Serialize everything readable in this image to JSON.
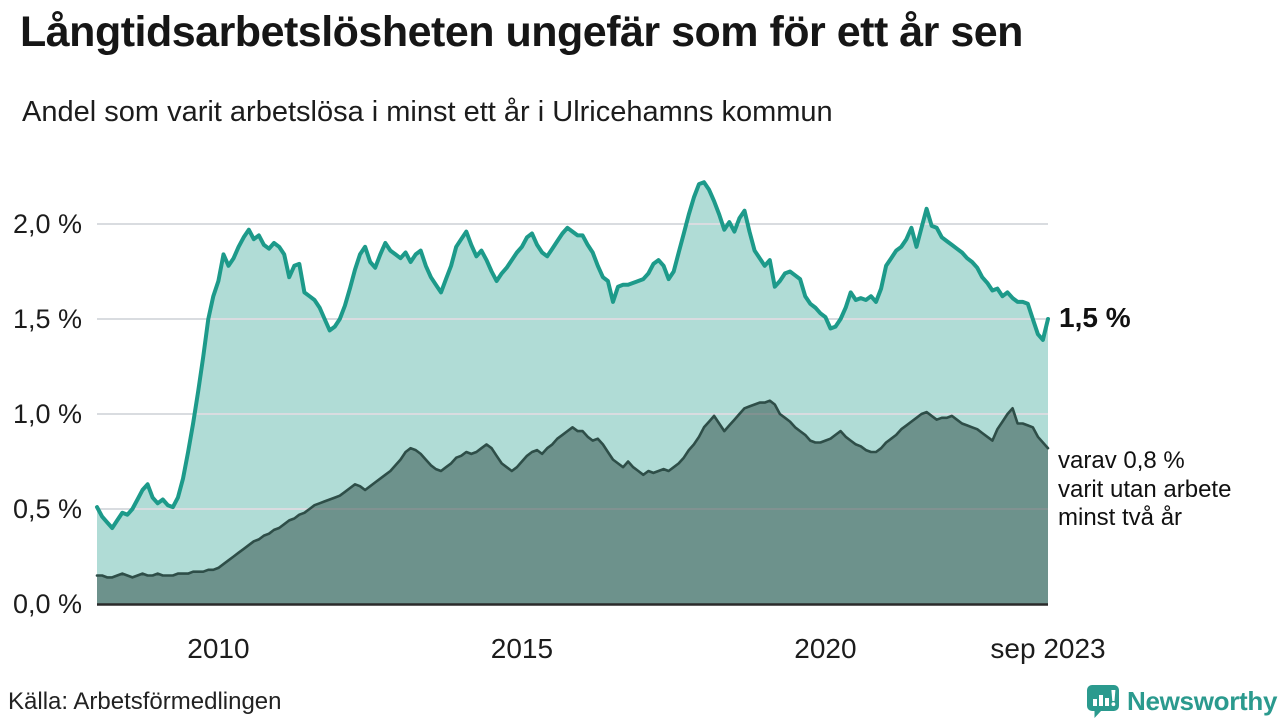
{
  "header": {
    "title": "Långtidsarbetslösheten ungefär som för ett år sen",
    "subtitle": "Andel som varit arbetslösa i minst ett år i Ulricehamns kommun"
  },
  "colors": {
    "primary_line": "#1d9a8a",
    "primary_fill": "rgba(29,154,138,0.35)",
    "secondary_line": "#2e4e48",
    "secondary_fill": "rgba(47,79,73,0.52)",
    "gridline": "#d9dce0",
    "axis": "#2a2a2a",
    "brand_teal": "#2b9a8e"
  },
  "chart_data": {
    "type": "area",
    "title": "Långtidsarbetslösheten ungefär som för ett år sen",
    "subtitle": "Andel som varit arbetslösa i minst ett år i Ulricehamns kommun",
    "unit": "%",
    "frequency": "monthly",
    "x_start": "jan 2008",
    "x_end": "sep 2023",
    "ylim": [
      0,
      2.35
    ],
    "grid": true,
    "legend_position": "none",
    "y_ticks": [
      {
        "label": "2,0 %",
        "value": 2.0
      },
      {
        "label": "1,5 %",
        "value": 1.5
      },
      {
        "label": "1,0 %",
        "value": 1.0
      },
      {
        "label": "0,5 %",
        "value": 0.5
      },
      {
        "label": "0,0 %",
        "value": 0.0
      }
    ],
    "x_ticks": [
      {
        "label": "2010",
        "month_index": 24
      },
      {
        "label": "2015",
        "month_index": 84
      },
      {
        "label": "2020",
        "month_index": 144
      },
      {
        "label": "sep 2023",
        "month_index": 188
      }
    ],
    "series": [
      {
        "name": "Andel arbetslösa minst ett år",
        "current_value": "1,5 %",
        "values": [
          0.51,
          0.46,
          0.43,
          0.4,
          0.44,
          0.48,
          0.47,
          0.5,
          0.55,
          0.6,
          0.63,
          0.56,
          0.53,
          0.55,
          0.52,
          0.51,
          0.56,
          0.66,
          0.8,
          0.95,
          1.12,
          1.3,
          1.5,
          1.62,
          1.7,
          1.84,
          1.78,
          1.82,
          1.88,
          1.93,
          1.97,
          1.92,
          1.94,
          1.89,
          1.87,
          1.9,
          1.88,
          1.84,
          1.72,
          1.78,
          1.79,
          1.64,
          1.62,
          1.6,
          1.56,
          1.5,
          1.44,
          1.46,
          1.5,
          1.57,
          1.66,
          1.76,
          1.84,
          1.88,
          1.8,
          1.77,
          1.84,
          1.9,
          1.86,
          1.84,
          1.82,
          1.85,
          1.8,
          1.84,
          1.86,
          1.78,
          1.72,
          1.68,
          1.64,
          1.71,
          1.78,
          1.88,
          1.92,
          1.96,
          1.89,
          1.83,
          1.86,
          1.81,
          1.75,
          1.7,
          1.74,
          1.77,
          1.81,
          1.85,
          1.88,
          1.93,
          1.95,
          1.89,
          1.85,
          1.83,
          1.87,
          1.91,
          1.95,
          1.98,
          1.96,
          1.94,
          1.94,
          1.89,
          1.85,
          1.78,
          1.72,
          1.7,
          1.59,
          1.67,
          1.68,
          1.68,
          1.69,
          1.7,
          1.71,
          1.74,
          1.79,
          1.81,
          1.78,
          1.71,
          1.75,
          1.85,
          1.95,
          2.05,
          2.14,
          2.21,
          2.22,
          2.18,
          2.12,
          2.05,
          1.97,
          2.01,
          1.96,
          2.03,
          2.07,
          1.96,
          1.86,
          1.82,
          1.78,
          1.81,
          1.67,
          1.7,
          1.74,
          1.75,
          1.73,
          1.71,
          1.62,
          1.58,
          1.56,
          1.53,
          1.51,
          1.45,
          1.46,
          1.5,
          1.56,
          1.64,
          1.6,
          1.61,
          1.6,
          1.62,
          1.59,
          1.66,
          1.78,
          1.82,
          1.86,
          1.88,
          1.92,
          1.98,
          1.88,
          1.98,
          2.08,
          1.99,
          1.98,
          1.93,
          1.91,
          1.89,
          1.87,
          1.85,
          1.82,
          1.8,
          1.77,
          1.72,
          1.69,
          1.65,
          1.66,
          1.62,
          1.64,
          1.61,
          1.59,
          1.59,
          1.58,
          1.5,
          1.42,
          1.39,
          1.5
        ]
      },
      {
        "name": "Andel arbetslösa minst två år",
        "current_value": "0,8 %",
        "values": [
          0.15,
          0.15,
          0.14,
          0.14,
          0.15,
          0.16,
          0.15,
          0.14,
          0.15,
          0.16,
          0.15,
          0.15,
          0.16,
          0.15,
          0.15,
          0.15,
          0.16,
          0.16,
          0.16,
          0.17,
          0.17,
          0.17,
          0.18,
          0.18,
          0.19,
          0.21,
          0.23,
          0.25,
          0.27,
          0.29,
          0.31,
          0.33,
          0.34,
          0.36,
          0.37,
          0.39,
          0.4,
          0.42,
          0.44,
          0.45,
          0.47,
          0.48,
          0.5,
          0.52,
          0.53,
          0.54,
          0.55,
          0.56,
          0.57,
          0.59,
          0.61,
          0.63,
          0.62,
          0.6,
          0.62,
          0.64,
          0.66,
          0.68,
          0.7,
          0.73,
          0.76,
          0.8,
          0.82,
          0.81,
          0.79,
          0.76,
          0.73,
          0.71,
          0.7,
          0.72,
          0.74,
          0.77,
          0.78,
          0.8,
          0.79,
          0.8,
          0.82,
          0.84,
          0.82,
          0.78,
          0.74,
          0.72,
          0.7,
          0.72,
          0.75,
          0.78,
          0.8,
          0.81,
          0.79,
          0.82,
          0.84,
          0.87,
          0.89,
          0.91,
          0.93,
          0.91,
          0.91,
          0.88,
          0.86,
          0.87,
          0.84,
          0.8,
          0.76,
          0.74,
          0.72,
          0.75,
          0.72,
          0.7,
          0.68,
          0.7,
          0.69,
          0.7,
          0.71,
          0.7,
          0.72,
          0.74,
          0.77,
          0.81,
          0.84,
          0.88,
          0.93,
          0.96,
          0.99,
          0.95,
          0.91,
          0.94,
          0.97,
          1.0,
          1.03,
          1.04,
          1.05,
          1.06,
          1.06,
          1.07,
          1.05,
          1.0,
          0.98,
          0.96,
          0.93,
          0.91,
          0.89,
          0.86,
          0.85,
          0.85,
          0.86,
          0.87,
          0.89,
          0.91,
          0.88,
          0.86,
          0.84,
          0.83,
          0.81,
          0.8,
          0.8,
          0.82,
          0.85,
          0.87,
          0.89,
          0.92,
          0.94,
          0.96,
          0.98,
          1.0,
          1.01,
          0.99,
          0.97,
          0.98,
          0.98,
          0.99,
          0.97,
          0.95,
          0.94,
          0.93,
          0.92,
          0.9,
          0.88,
          0.86,
          0.92,
          0.96,
          1.0,
          1.03,
          0.95,
          0.95,
          0.94,
          0.93,
          0.88,
          0.85,
          0.82
        ]
      }
    ],
    "annotations": [
      {
        "id": "end-value-label",
        "text": "1,5 %"
      },
      {
        "id": "secondary-note",
        "lines": [
          "varav 0,8 %",
          "varit utan arbete",
          "minst två år"
        ]
      }
    ]
  },
  "footer": {
    "source": "Källa: Arbetsförmedlingen",
    "brand": "Newsworthy"
  }
}
